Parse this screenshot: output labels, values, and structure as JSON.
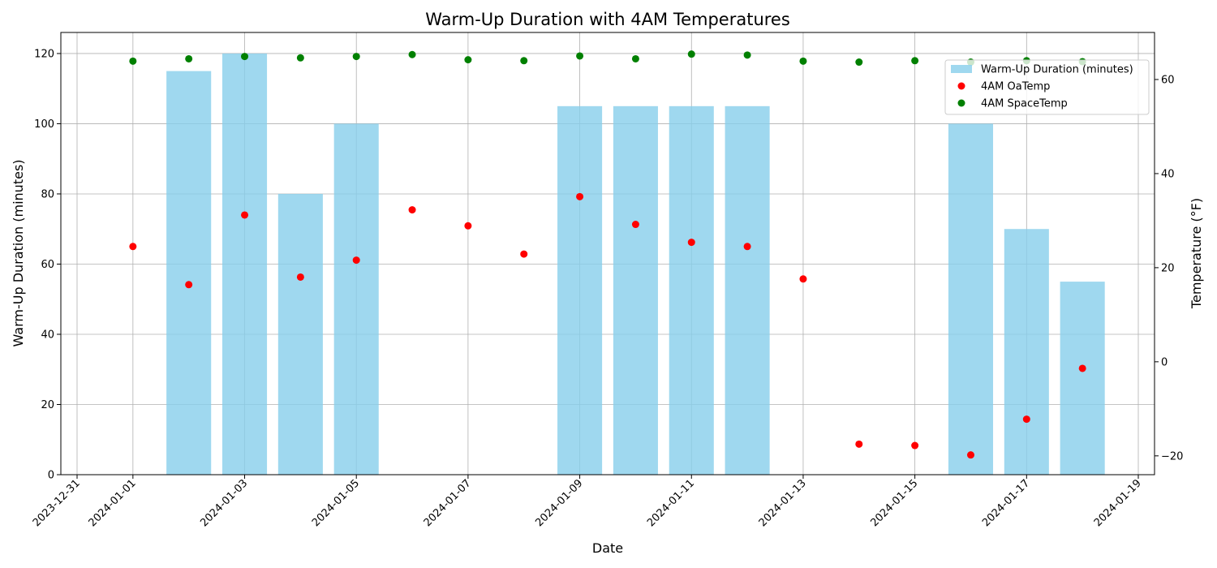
{
  "chart_data": {
    "type": "bar",
    "title": "Warm-Up Duration with 4AM Temperatures",
    "xlabel": "Date",
    "ylabel": "Warm-Up Duration (minutes)",
    "y2label": "Temperature (°F)",
    "xlim": [
      "2023-12-31",
      "2024-01-19"
    ],
    "ylim": [
      0,
      126
    ],
    "y2lim": [
      -24,
      70
    ],
    "x_ticks": [
      "2023-12-31",
      "2024-01-01",
      "2024-01-03",
      "2024-01-05",
      "2024-01-07",
      "2024-01-09",
      "2024-01-11",
      "2024-01-13",
      "2024-01-15",
      "2024-01-17",
      "2024-01-19"
    ],
    "y_ticks": [
      0,
      20,
      40,
      60,
      80,
      100,
      120
    ],
    "y2_ticks": [
      -20,
      0,
      20,
      40,
      60
    ],
    "grid": true,
    "legend_position": "top-right",
    "series": [
      {
        "name": "Warm-Up Duration (minutes)",
        "type": "bar",
        "axis": "left",
        "color": "#87ceeb",
        "points": [
          {
            "x": "2024-01-02",
            "y": 115
          },
          {
            "x": "2024-01-03",
            "y": 120
          },
          {
            "x": "2024-01-04",
            "y": 80
          },
          {
            "x": "2024-01-05",
            "y": 100
          },
          {
            "x": "2024-01-09",
            "y": 105
          },
          {
            "x": "2024-01-10",
            "y": 105
          },
          {
            "x": "2024-01-11",
            "y": 105
          },
          {
            "x": "2024-01-12",
            "y": 105
          },
          {
            "x": "2024-01-16",
            "y": 100
          },
          {
            "x": "2024-01-17",
            "y": 70
          },
          {
            "x": "2024-01-18",
            "y": 55
          }
        ]
      },
      {
        "name": "4AM OaTemp",
        "type": "scatter",
        "axis": "right",
        "color": "#ff0000",
        "points": [
          {
            "x": "2024-01-01",
            "y": 24.5
          },
          {
            "x": "2024-01-02",
            "y": 16.4
          },
          {
            "x": "2024-01-03",
            "y": 31.2
          },
          {
            "x": "2024-01-04",
            "y": 18.0
          },
          {
            "x": "2024-01-05",
            "y": 21.6
          },
          {
            "x": "2024-01-06",
            "y": 32.3
          },
          {
            "x": "2024-01-07",
            "y": 28.9
          },
          {
            "x": "2024-01-08",
            "y": 22.9
          },
          {
            "x": "2024-01-09",
            "y": 35.1
          },
          {
            "x": "2024-01-10",
            "y": 29.2
          },
          {
            "x": "2024-01-11",
            "y": 25.4
          },
          {
            "x": "2024-01-12",
            "y": 24.5
          },
          {
            "x": "2024-01-13",
            "y": 17.6
          },
          {
            "x": "2024-01-14",
            "y": -17.5
          },
          {
            "x": "2024-01-15",
            "y": -17.8
          },
          {
            "x": "2024-01-16",
            "y": -19.8
          },
          {
            "x": "2024-01-17",
            "y": -12.2
          },
          {
            "x": "2024-01-18",
            "y": -1.4
          }
        ]
      },
      {
        "name": "4AM SpaceTemp",
        "type": "scatter",
        "axis": "right",
        "color": "#008000",
        "points": [
          {
            "x": "2024-01-01",
            "y": 63.9
          },
          {
            "x": "2024-01-02",
            "y": 64.4
          },
          {
            "x": "2024-01-03",
            "y": 64.9
          },
          {
            "x": "2024-01-04",
            "y": 64.6
          },
          {
            "x": "2024-01-05",
            "y": 64.9
          },
          {
            "x": "2024-01-06",
            "y": 65.3
          },
          {
            "x": "2024-01-07",
            "y": 64.2
          },
          {
            "x": "2024-01-08",
            "y": 64.0
          },
          {
            "x": "2024-01-09",
            "y": 65.0
          },
          {
            "x": "2024-01-10",
            "y": 64.4
          },
          {
            "x": "2024-01-11",
            "y": 65.4
          },
          {
            "x": "2024-01-12",
            "y": 65.2
          },
          {
            "x": "2024-01-13",
            "y": 63.9
          },
          {
            "x": "2024-01-14",
            "y": 63.7
          },
          {
            "x": "2024-01-15",
            "y": 64.0
          },
          {
            "x": "2024-01-16",
            "y": 63.7
          },
          {
            "x": "2024-01-17",
            "y": 64.0
          },
          {
            "x": "2024-01-18",
            "y": 63.8
          }
        ]
      }
    ]
  }
}
